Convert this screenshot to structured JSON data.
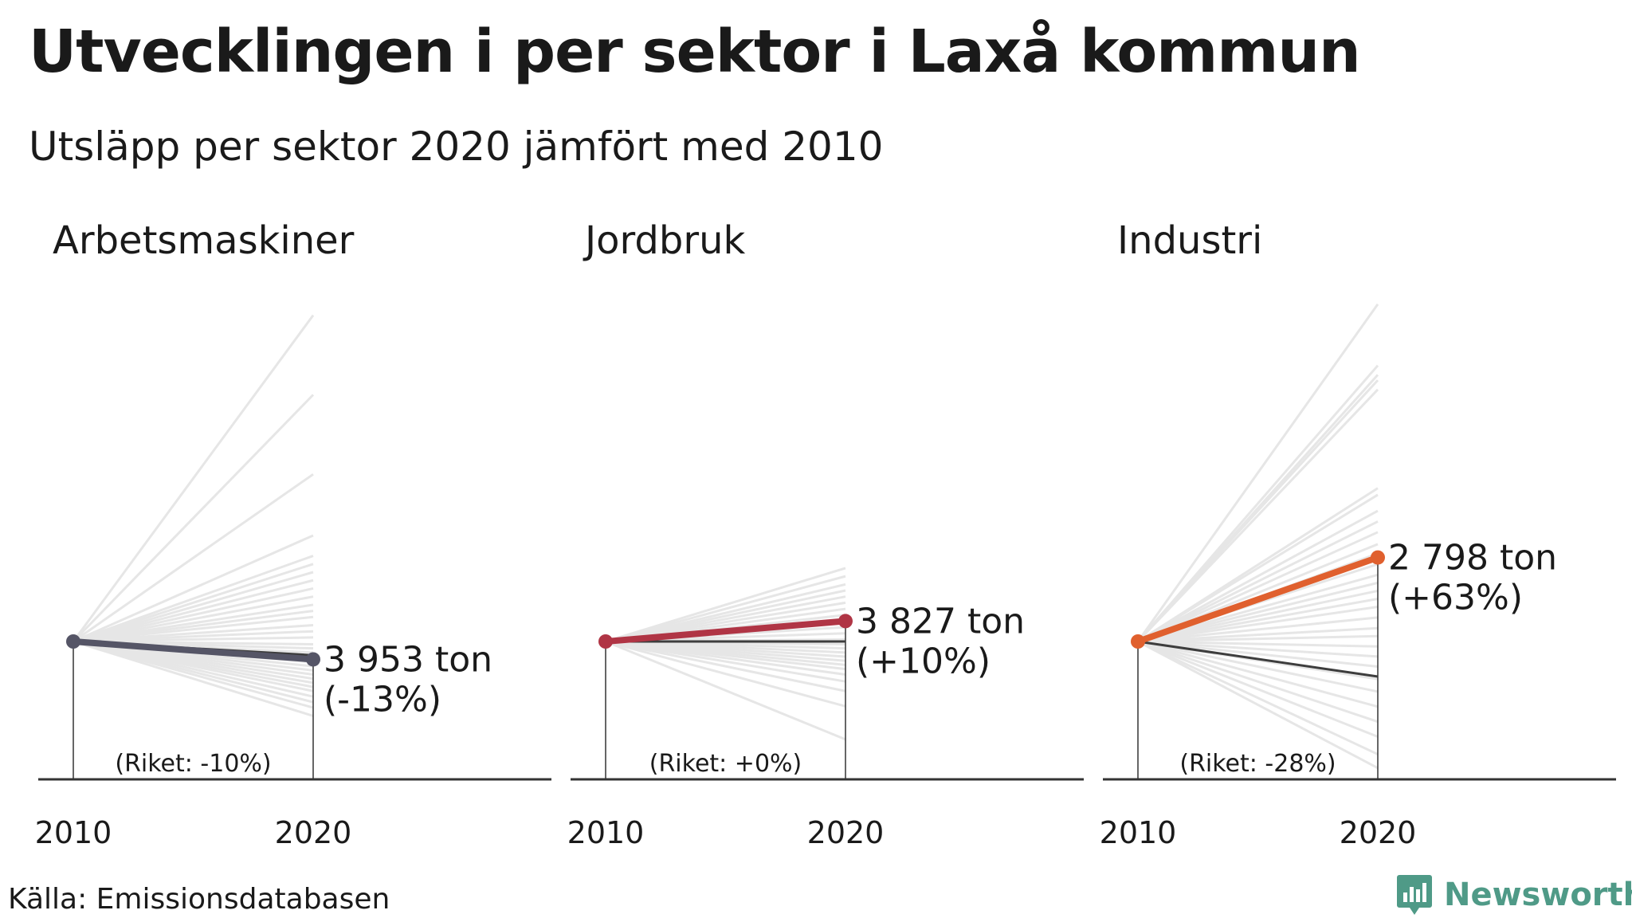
{
  "title": "Utvecklingen i per sektor i Laxå kommun",
  "subtitle": "Utsläpp per sektor 2020 jämfört med 2010",
  "source": "Källa: Emissionsdatabasen",
  "logo": {
    "text": "Newsworthy",
    "icon": "newsworthy-logo-icon",
    "color": "#4f9a87"
  },
  "chart_data": [
    {
      "type": "line",
      "title": "Arbetsmaskiner",
      "categories": [
        "2010",
        "2020"
      ],
      "highlight": {
        "name": "Laxå kommun",
        "change_pct": -13,
        "value_2020": 3953,
        "color": "#555566"
      },
      "label_value": "3 953 ton",
      "label_change": "(-13%)",
      "national": {
        "change_pct": -10,
        "label": "(Riket: -10%)"
      },
      "background_changes_pct": [
        160,
        121,
        82,
        52,
        42,
        38,
        34,
        30,
        26,
        22,
        18,
        15,
        12,
        8,
        5,
        2,
        -2,
        -5,
        -8,
        -11,
        -15,
        -18,
        -21,
        -24,
        -27,
        -30,
        -33,
        -36,
        -40,
        -44,
        -48,
        -54
      ],
      "ylim": [
        -100,
        170
      ]
    },
    {
      "type": "line",
      "title": "Jordbruk",
      "categories": [
        "2010",
        "2020"
      ],
      "highlight": {
        "name": "Laxå kommun",
        "change_pct": 10,
        "value_2020": 3827,
        "color": "#b03545"
      },
      "label_value": "3 827 ton",
      "label_change": "(+10%)",
      "national": {
        "change_pct": 0,
        "label": "(Riket: +0%)"
      },
      "background_changes_pct": [
        36,
        32,
        28,
        25,
        22,
        19,
        16,
        13,
        10,
        7,
        4,
        1,
        -2,
        -5,
        -8,
        -11,
        -14,
        -17,
        -20,
        -24,
        -29,
        -36,
        -47,
        -71
      ],
      "ylim": [
        -100,
        170
      ]
    },
    {
      "type": "line",
      "title": "Industri",
      "categories": [
        "2010",
        "2020"
      ],
      "highlight": {
        "name": "Laxå kommun",
        "change_pct": 63,
        "value_2020": 2798,
        "color": "#e0602e"
      },
      "label_value": "2 798 ton",
      "label_change": "(+63%)",
      "national": {
        "change_pct": -28,
        "label": "(Riket: -28%)"
      },
      "background_changes_pct": [
        253,
        207,
        200,
        196,
        189,
        115,
        110,
        98,
        90,
        82,
        73,
        66,
        58,
        50,
        44,
        38,
        32,
        26,
        18,
        10,
        4,
        -4,
        -12,
        -20,
        -30,
        -40,
        -52,
        -64,
        -76,
        -90,
        -101
      ],
      "ylim": [
        -110,
        260
      ]
    }
  ],
  "colors": {
    "background_line": "#e6e6e6",
    "national_line": "#3d3d3d",
    "axis": "#333333"
  }
}
